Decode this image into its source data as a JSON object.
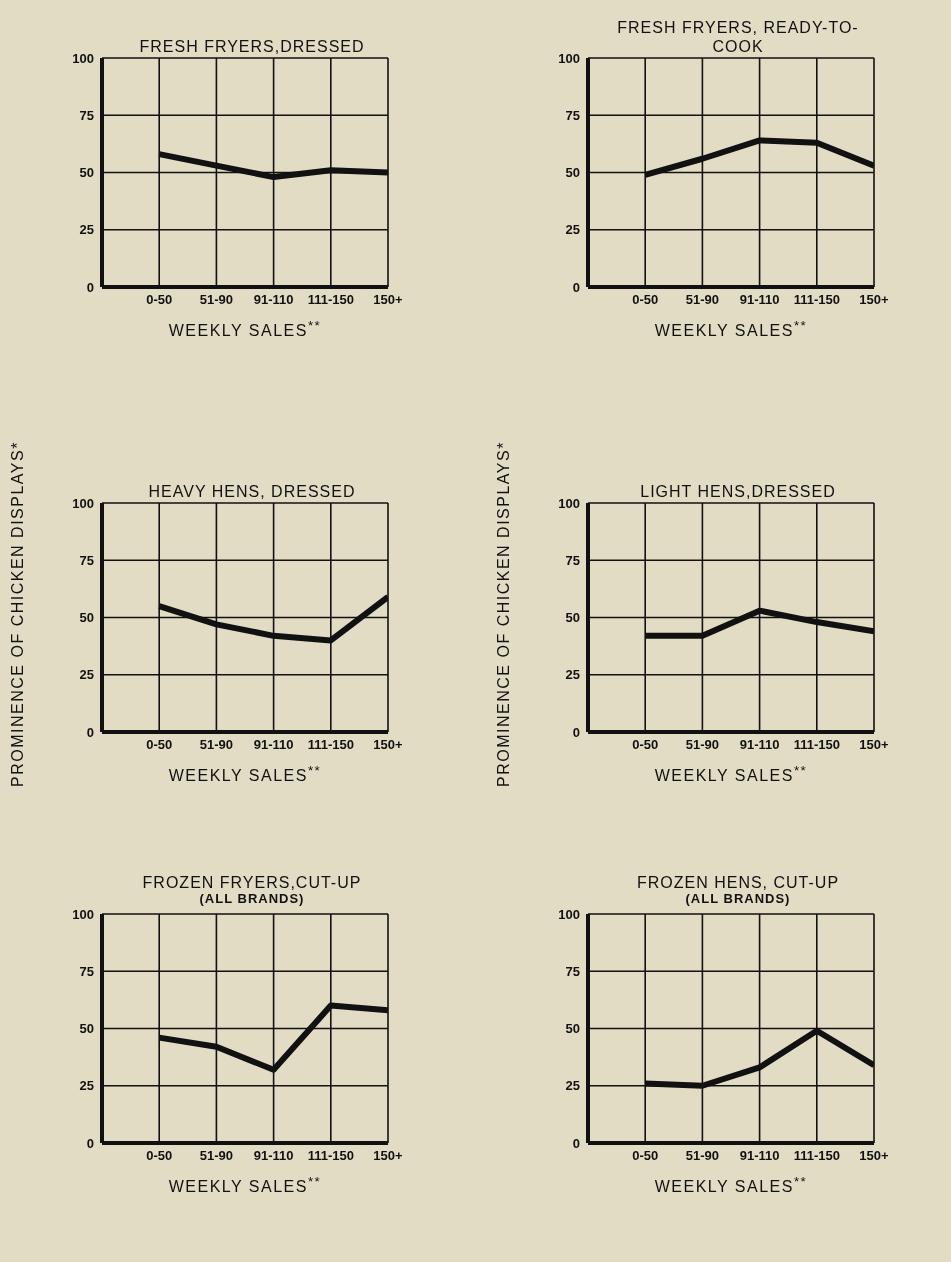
{
  "chart_data": [
    {
      "type": "line",
      "title": "FRESH FRYERS,DRESSED",
      "xlabel": "WEEKLY SALES$^{**}$",
      "categories": [
        "0-50",
        "51-90",
        "91-110",
        "111-150",
        "150+"
      ],
      "values": [
        58,
        53,
        48,
        51,
        50
      ],
      "color": "#111111",
      "ylim": [
        0,
        100
      ],
      "yticks": [
        0,
        25,
        50,
        75,
        100
      ],
      "grid": true,
      "marker": "none",
      "line_style": "solid"
    },
    {
      "type": "line",
      "title": "FRESH FRYERS, READY-TO-COOK",
      "xlabel": "WEEKLY SALES$^{**}$",
      "categories": [
        "0-50",
        "51-90",
        "91-110",
        "111-150",
        "150+"
      ],
      "values": [
        49,
        56,
        64,
        63,
        53
      ],
      "color": "#111111",
      "ylim": [
        0,
        100
      ],
      "yticks": [
        0,
        25,
        50,
        75,
        100
      ],
      "grid": true,
      "marker": "none",
      "line_style": "solid"
    },
    {
      "type": "line",
      "title": "HEAVY HENS, DRESSED",
      "xlabel": "WEEKLY SALES$^{**}$",
      "ylabel": "PROMINENCE OF CHICKEN DISPLAYS*",
      "categories": [
        "0-50",
        "51-90",
        "91-110",
        "111-150",
        "150+"
      ],
      "values": [
        55,
        47,
        42,
        40,
        59
      ],
      "color": "#111111",
      "ylim": [
        0,
        100
      ],
      "yticks": [
        0,
        25,
        50,
        75,
        100
      ],
      "grid": true,
      "marker": "none",
      "line_style": "solid"
    },
    {
      "type": "line",
      "title": "LIGHT HENS,DRESSED",
      "xlabel": "WEEKLY SALES$^{**}$",
      "ylabel": "PROMINENCE OF CHICKEN DISPLAYS*",
      "categories": [
        "0-50",
        "51-90",
        "91-110",
        "111-150",
        "150+"
      ],
      "values": [
        42,
        42,
        53,
        48,
        44
      ],
      "color": "#111111",
      "ylim": [
        0,
        100
      ],
      "yticks": [
        0,
        25,
        50,
        75,
        100
      ],
      "grid": true,
      "marker": "none",
      "line_style": "solid"
    },
    {
      "type": "line",
      "title": "FROZEN FRYERS,CUT-UP",
      "subtitle": "(ALL BRANDS)",
      "xlabel": "WEEKLY SALES$^{**}$",
      "categories": [
        "0-50",
        "51-90",
        "91-110",
        "111-150",
        "150+"
      ],
      "values": [
        46,
        42,
        32,
        60,
        58
      ],
      "color": "#111111",
      "ylim": [
        0,
        100
      ],
      "yticks": [
        0,
        25,
        50,
        75,
        100
      ],
      "grid": true,
      "marker": "none",
      "line_style": "solid"
    },
    {
      "type": "line",
      "title": "FROZEN HENS, CUT-UP",
      "subtitle": "(ALL BRANDS)",
      "xlabel": "WEEKLY SALES$^{**}$",
      "categories": [
        "0-50",
        "51-90",
        "91-110",
        "111-150",
        "150+"
      ],
      "values": [
        26,
        25,
        33,
        49,
        34
      ],
      "color": "#111111",
      "ylim": [
        0,
        100
      ],
      "yticks": [
        0,
        25,
        50,
        75,
        100
      ],
      "grid": true,
      "marker": "none",
      "line_style": "solid"
    }
  ]
}
